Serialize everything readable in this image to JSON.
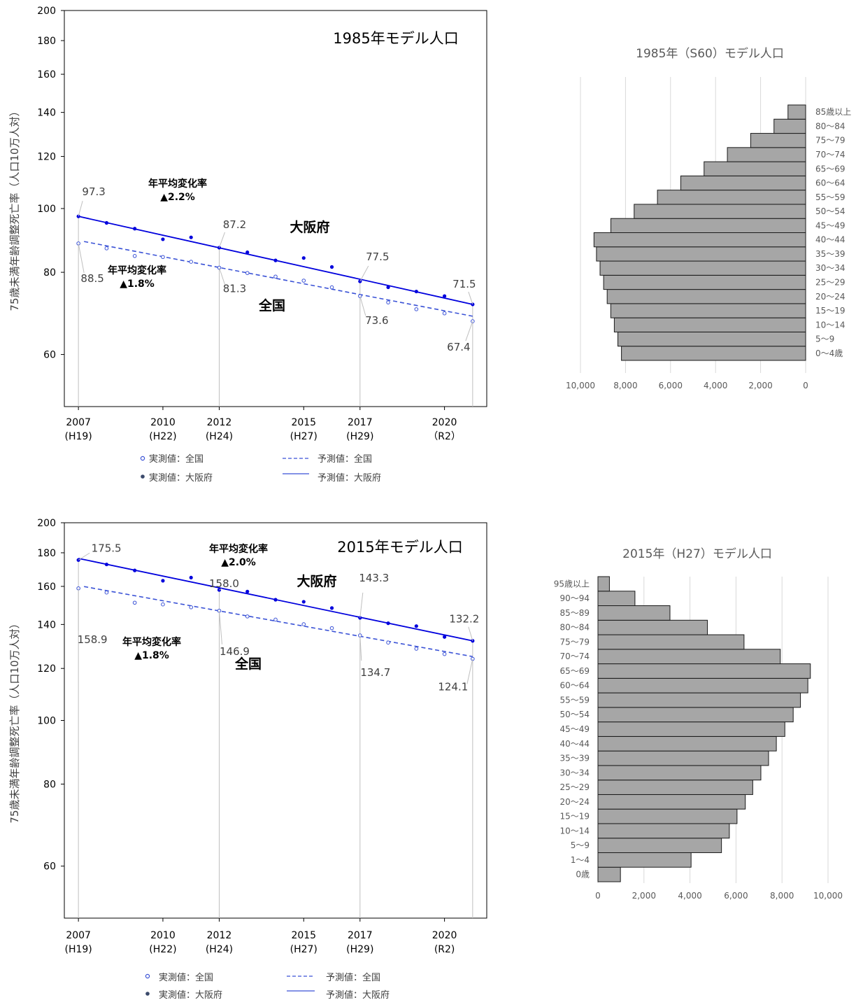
{
  "colors": {
    "osaka": "#0000dd",
    "national": "#3a52d6",
    "bar_fill": "#a6a6a6",
    "gray_text": "#595959"
  },
  "chart_data": [
    {
      "type": "line",
      "title": "1985年モデル人口",
      "ylabel": "75歳未満年齢調整死亡率（人口10万人対）",
      "y_scale": "log",
      "ylim": [
        50,
        200
      ],
      "yticks": [
        "60",
        "80",
        "100",
        "120",
        "140",
        "160",
        "180",
        "200"
      ],
      "yticks_values": [
        60,
        80,
        100,
        120,
        140,
        160,
        180,
        200
      ],
      "xlim": [
        2006.5,
        2021.5
      ],
      "xticks": [
        {
          "x": 2007,
          "year": "2007",
          "era": "(H19)"
        },
        {
          "x": 2010,
          "year": "2010",
          "era": "(H22)"
        },
        {
          "x": 2012,
          "year": "2012",
          "era": "(H24)"
        },
        {
          "x": 2015,
          "year": "2015",
          "era": "(H27)"
        },
        {
          "x": 2017,
          "year": "2017",
          "era": "(H29)"
        },
        {
          "x": 2020,
          "year": "2020",
          "era": "（R2）"
        }
      ],
      "x": [
        2007,
        2008,
        2009,
        2010,
        2011,
        2012,
        2013,
        2014,
        2015,
        2016,
        2017,
        2018,
        2019,
        2020,
        2021
      ],
      "osaka_observed": [
        97.3,
        95.1,
        93.2,
        89.8,
        90.4,
        87.2,
        85.8,
        83.4,
        84.1,
        81.5,
        77.5,
        75.9,
        74.8,
        73.6,
        71.5
      ],
      "national_observed": [
        88.5,
        87.0,
        84.7,
        84.4,
        83.0,
        81.3,
        79.8,
        78.8,
        77.7,
        75.9,
        73.6,
        72.0,
        70.3,
        69.3,
        67.4
      ],
      "osaka_trend": [
        97.3,
        71.5
      ],
      "national_trend": [
        89.1,
        68.6
      ],
      "labels": [
        {
          "text": "97.3",
          "x": 2007,
          "y": 97.3
        },
        {
          "text": "88.5",
          "x": 2007,
          "y": 88.5
        },
        {
          "text": "87.2",
          "x": 2012,
          "y": 87.2
        },
        {
          "text": "81.3",
          "x": 2012,
          "y": 81.3
        },
        {
          "text": "77.5",
          "x": 2017,
          "y": 77.5
        },
        {
          "text": "73.6",
          "x": 2017,
          "y": 73.6
        },
        {
          "text": "71.5",
          "x": 2021,
          "y": 71.5
        },
        {
          "text": "67.4",
          "x": 2021,
          "y": 67.4
        }
      ],
      "annotations": [
        {
          "line1": "年平均変化率",
          "line2": "▲2.2%"
        },
        {
          "line1": "年平均変化率",
          "line2": "▲1.8%"
        }
      ],
      "series_labels": {
        "osaka": "大阪府",
        "national": "全国"
      },
      "legend": {
        "observed_national": "実測値：全国",
        "observed_osaka": "実測値：大阪府",
        "predicted_national": "予測値：全国",
        "predicted_osaka": "予測値：大阪府"
      }
    },
    {
      "type": "bar",
      "orientation": "horizontal",
      "title": "1985年（S60）モデル人口",
      "categories": [
        "0～4歳",
        "5～9",
        "10～14",
        "15～19",
        "20～24",
        "25～29",
        "30～34",
        "35～39",
        "40～44",
        "45～49",
        "50～54",
        "55～59",
        "60～64",
        "65～69",
        "70～74",
        "75～79",
        "80～84",
        "85歳以上"
      ],
      "values": [
        8180,
        8338,
        8497,
        8655,
        8814,
        8972,
        9130,
        9289,
        9400,
        8651,
        7616,
        6581,
        5546,
        4511,
        3476,
        2441,
        1406,
        784
      ],
      "xlim": [
        0,
        10000
      ],
      "x_reversed": true,
      "xticks": [
        "10,000",
        "8,000",
        "6,000",
        "4,000",
        "2,000",
        "0"
      ],
      "xticks_values": [
        10000,
        8000,
        6000,
        4000,
        2000,
        0
      ],
      "grid": true
    },
    {
      "type": "line",
      "title": "2015年モデル人口",
      "ylabel": "75歳未満年齢調整死亡率（人口10万人対）",
      "y_scale": "log",
      "ylim": [
        50,
        200
      ],
      "yticks": [
        "60",
        "80",
        "100",
        "120",
        "140",
        "160",
        "180",
        "200"
      ],
      "yticks_values": [
        60,
        80,
        100,
        120,
        140,
        160,
        180,
        200
      ],
      "xlim": [
        2006.5,
        2021.5
      ],
      "xticks": [
        {
          "x": 2007,
          "year": "2007",
          "era": "(H19)"
        },
        {
          "x": 2010,
          "year": "2010",
          "era": "(H22)"
        },
        {
          "x": 2012,
          "year": "2012",
          "era": "(H24)"
        },
        {
          "x": 2015,
          "year": "2015",
          "era": "(H27)"
        },
        {
          "x": 2017,
          "year": "2017",
          "era": "(H29)"
        },
        {
          "x": 2020,
          "year": "2020",
          "era": "(R2)"
        }
      ],
      "x": [
        2007,
        2008,
        2009,
        2010,
        2011,
        2012,
        2013,
        2014,
        2015,
        2016,
        2017,
        2018,
        2019,
        2020,
        2021
      ],
      "osaka_observed": [
        175.5,
        172.8,
        169.2,
        163.2,
        165.0,
        158.0,
        157.1,
        152.7,
        151.6,
        148.3,
        143.3,
        140.6,
        139.2,
        134.0,
        132.2
      ],
      "national_observed": [
        158.9,
        156.6,
        151.1,
        150.2,
        148.7,
        146.9,
        144.0,
        142.4,
        140.1,
        138.2,
        134.7,
        131.4,
        128.6,
        126.2,
        124.1
      ],
      "osaka_trend": [
        176.5,
        132.2
      ],
      "national_trend": [
        159.9,
        125.1
      ],
      "labels": [
        {
          "text": "175.5",
          "x": 2007,
          "y": 175.5
        },
        {
          "text": "158.9",
          "x": 2007,
          "y": 158.9
        },
        {
          "text": "158.0",
          "x": 2012,
          "y": 158.0
        },
        {
          "text": "146.9",
          "x": 2012,
          "y": 146.9
        },
        {
          "text": "143.3",
          "x": 2017,
          "y": 143.3
        },
        {
          "text": "134.7",
          "x": 2017,
          "y": 134.7
        },
        {
          "text": "132.2",
          "x": 2021,
          "y": 132.2
        },
        {
          "text": "124.1",
          "x": 2021,
          "y": 124.1
        }
      ],
      "annotations": [
        {
          "line1": "年平均変化率",
          "line2": "▲2.0%"
        },
        {
          "line1": "年平均変化率",
          "line2": "▲1.8%"
        }
      ],
      "series_labels": {
        "osaka": "大阪府",
        "national": "全国"
      },
      "legend": {
        "observed_national": "実測値：全国",
        "observed_osaka": "実測値：大阪府",
        "predicted_national": "予測値：全国",
        "predicted_osaka": "予測値：大阪府"
      }
    },
    {
      "type": "bar",
      "orientation": "horizontal",
      "title": "2015年（H27）モデル人口",
      "categories": [
        "0歳",
        "1～4",
        "5～9",
        "10～14",
        "15～19",
        "20～24",
        "25～29",
        "30～34",
        "35～39",
        "40～44",
        "45～49",
        "50～54",
        "55～59",
        "60～64",
        "65～69",
        "70～74",
        "75～79",
        "80～84",
        "85～89",
        "90～94",
        "95歳以上"
      ],
      "values": [
        978,
        4048,
        5369,
        5711,
        6045,
        6405,
        6728,
        7081,
        7416,
        7754,
        8123,
        8486,
        8802,
        9123,
        9233,
        7925,
        6349,
        4758,
        3130,
        1608,
        499
      ],
      "xlim": [
        0,
        10000
      ],
      "x_reversed": false,
      "xticks": [
        "0",
        "2,000",
        "4,000",
        "6,000",
        "8,000",
        "10,000"
      ],
      "xticks_values": [
        0,
        2000,
        4000,
        6000,
        8000,
        10000
      ],
      "grid": true
    }
  ]
}
